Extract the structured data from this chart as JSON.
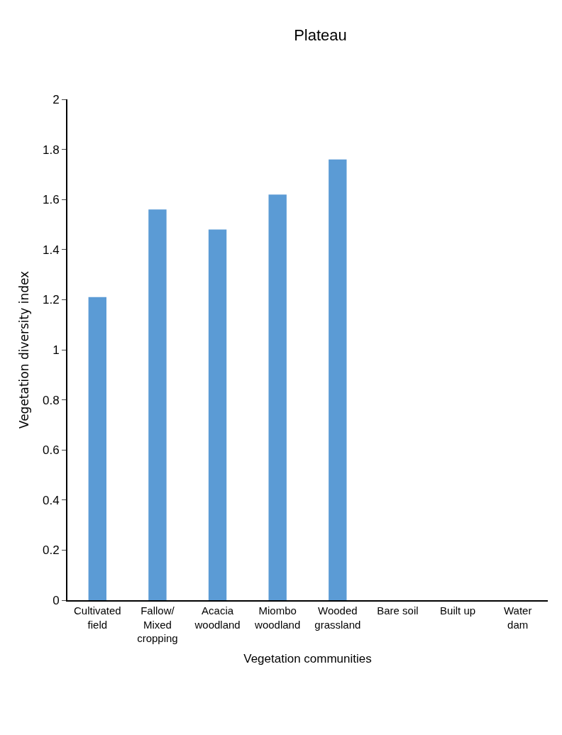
{
  "chart_data": {
    "type": "bar",
    "title": "Plateau",
    "xlabel": "Vegetation communities",
    "ylabel": "Vegetation diversity index",
    "categories": [
      "Cultivated\nfield",
      "Fallow/\nMixed\ncropping",
      "Acacia\nwoodland",
      "Miombo\nwoodland",
      "Wooded\ngrassland",
      "Bare soil",
      "Built up",
      "Water\ndam"
    ],
    "values": [
      1.21,
      1.56,
      1.48,
      1.62,
      1.76,
      0,
      0,
      0
    ],
    "color": "#5b9bd5",
    "ylim": [
      0,
      2
    ],
    "yticks": [
      0,
      {
        "value": 0.2,
        "label": "0.2"
      },
      {
        "value": 0.4,
        "label": "0.4"
      },
      {
        "value": 0.6,
        "label": "0.6"
      },
      {
        "value": 0.8,
        "label": "0.8"
      },
      1,
      {
        "value": 1.2,
        "label": "1.2"
      },
      {
        "value": 1.4,
        "label": "1.4"
      },
      {
        "value": 1.6,
        "label": "1.6"
      },
      {
        "value": 1.8,
        "label": "1.8"
      },
      2
    ]
  }
}
